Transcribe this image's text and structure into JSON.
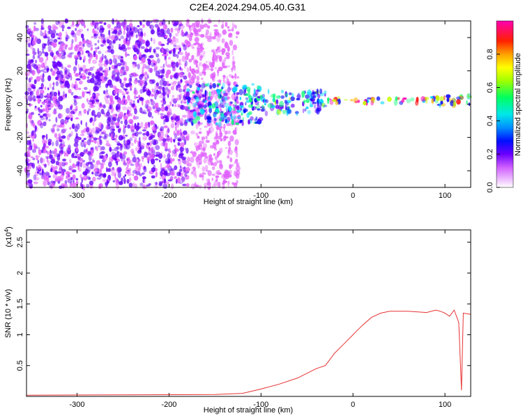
{
  "page_title": "C2E4.2024.294.05.40.G31",
  "chart_data": [
    {
      "type": "heatmap",
      "xlabel": "Height of straight line (km)",
      "ylabel": "Frequency (Hz)",
      "xlim": [
        -355,
        128
      ],
      "ylim": [
        -50,
        50
      ],
      "xticks": [
        -300,
        -200,
        -100,
        0,
        100
      ],
      "yticks": [
        -40,
        -20,
        0,
        20,
        40
      ],
      "grid": false,
      "colorbar": {
        "label": "Normalized spectral amplitude",
        "ticks": [
          0.0,
          0.2,
          0.4,
          0.6,
          0.8
        ],
        "range": [
          0,
          1
        ],
        "colors": [
          "#ffffff",
          "#e060ff",
          "#6a00ff",
          "#0000ff",
          "#00d8ff",
          "#00ff70",
          "#c8ff00",
          "#ffb000",
          "#ff0000",
          "#ff00b0"
        ]
      },
      "bands": [
        {
          "x": [
            -355,
            -180
          ],
          "freq_center": 0,
          "freq_halfwidth": 50,
          "amplitude": 0.22
        },
        {
          "x": [
            -180,
            -125
          ],
          "freq_center": 0,
          "freq_halfwidth": 50,
          "amplitude": 0.12
        },
        {
          "x": [
            -180,
            -100
          ],
          "freq_center": 0,
          "freq_halfwidth": 12,
          "amplitude": 0.45
        },
        {
          "x": [
            -100,
            -30
          ],
          "freq_center": 1,
          "freq_halfwidth": 7,
          "amplitude": 0.5
        },
        {
          "x": [
            -30,
            85
          ],
          "freq_center": 2,
          "freq_halfwidth": 1.5,
          "amplitude": 0.95
        },
        {
          "x": [
            85,
            128
          ],
          "freq_center": 2,
          "freq_halfwidth": 3,
          "amplitude": 0.75
        }
      ]
    },
    {
      "type": "line",
      "xlabel": "Height of straight line (km)",
      "ylabel": "SNR (10 * v/v)",
      "multiplier": "(x10",
      "exponent": "4",
      "multiplier_close": ")",
      "xlim": [
        -355,
        128
      ],
      "ylim": [
        0,
        2.7
      ],
      "xticks": [
        -300,
        -200,
        -100,
        0,
        100
      ],
      "yticks": [
        0.5,
        1.0,
        1.5,
        2.0,
        2.5
      ],
      "grid": false,
      "series": [
        {
          "color": "#e83030",
          "x": [
            -355,
            -150,
            -120,
            -100,
            -80,
            -60,
            -40,
            -30,
            -20,
            -10,
            0,
            10,
            20,
            30,
            40,
            60,
            80,
            90,
            95,
            100,
            105,
            110,
            115,
            118,
            120,
            128
          ],
          "y": [
            0.02,
            0.03,
            0.05,
            0.12,
            0.2,
            0.3,
            0.45,
            0.5,
            0.7,
            0.85,
            1.0,
            1.15,
            1.28,
            1.35,
            1.38,
            1.38,
            1.36,
            1.4,
            1.38,
            1.35,
            1.3,
            1.4,
            1.2,
            0.1,
            1.35,
            1.33
          ]
        }
      ]
    }
  ]
}
